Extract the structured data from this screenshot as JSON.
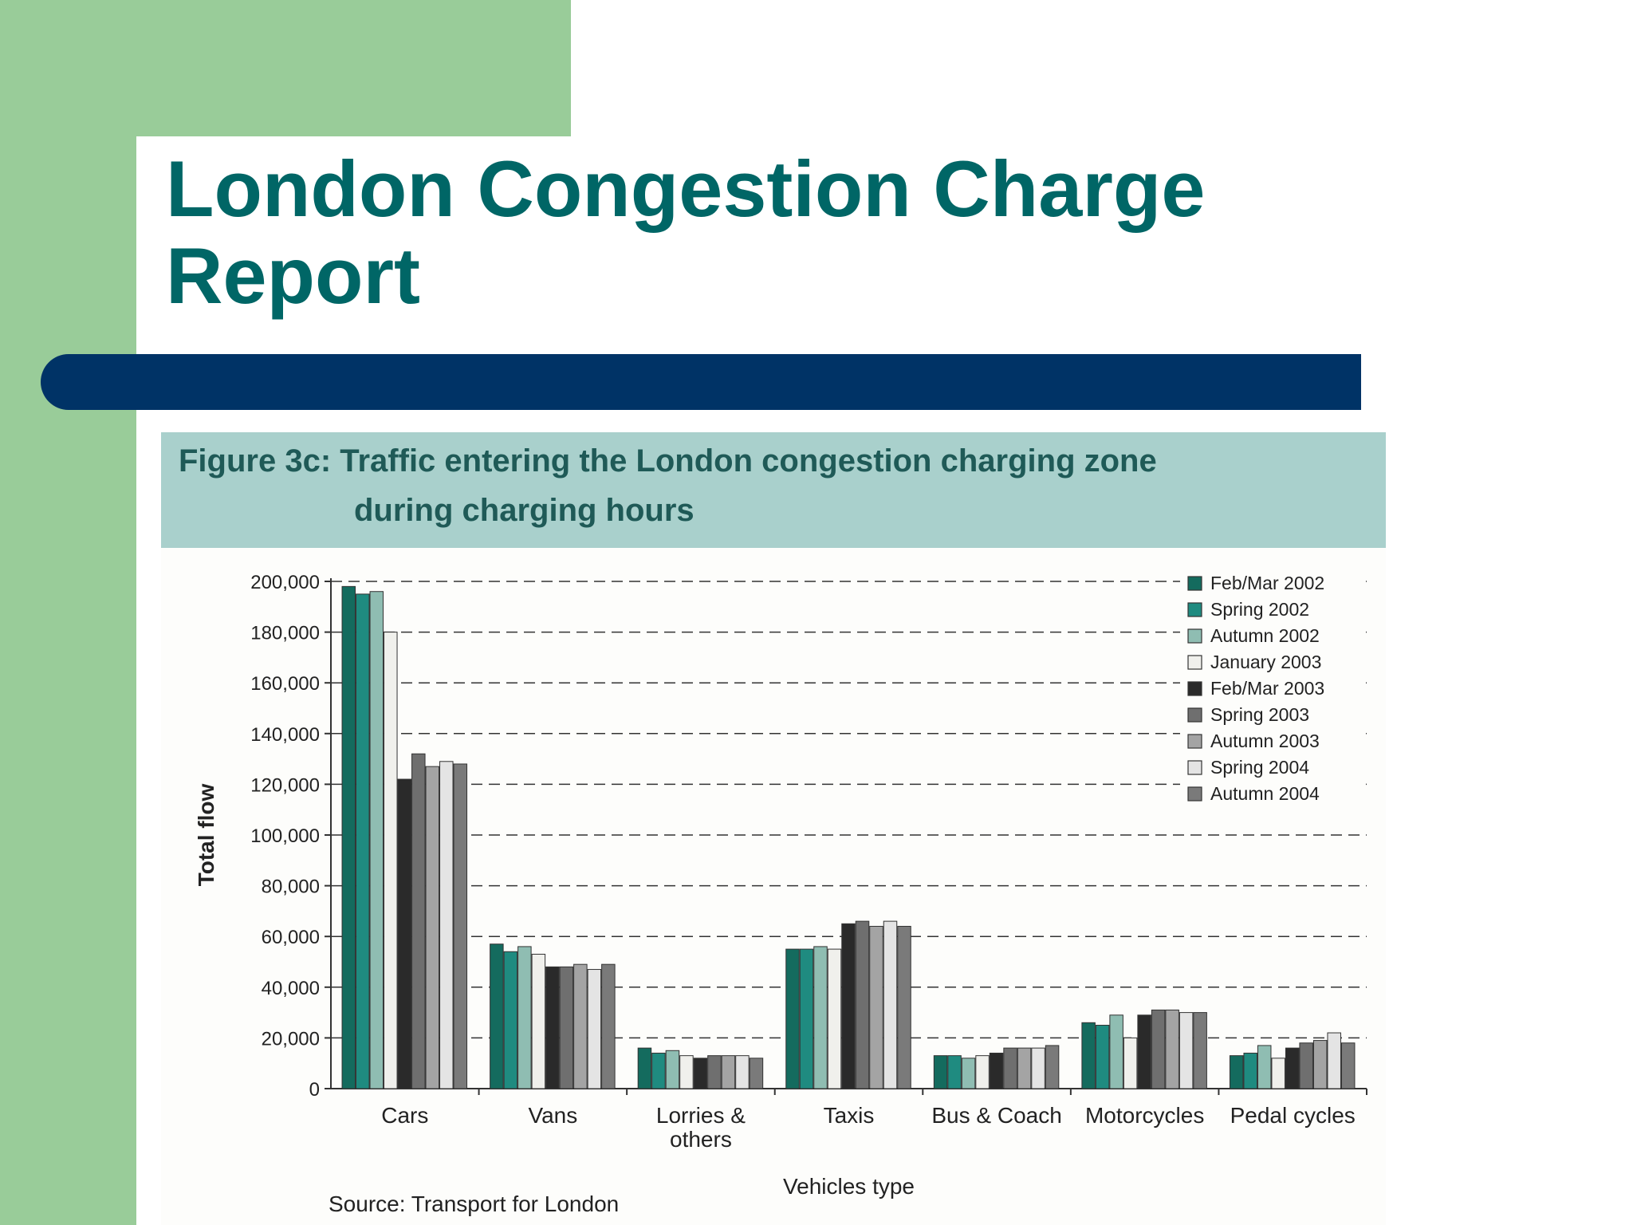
{
  "slide": {
    "title": "London Congestion Charge\nReport",
    "colors": {
      "accent_green": "#99cc99",
      "title_teal": "#006666",
      "bar_navy": "#003366"
    }
  },
  "figure": {
    "title_line1": "Figure 3c: Traffic entering the London congestion charging zone",
    "title_line2": "during charging hours",
    "source": "Source: Transport for London"
  },
  "chart_data": {
    "type": "bar",
    "xlabel": "Vehicles type",
    "ylabel": "Total flow",
    "ylim": [
      0,
      200000
    ],
    "yticks": [
      0,
      20000,
      40000,
      60000,
      80000,
      100000,
      120000,
      140000,
      160000,
      180000,
      200000
    ],
    "ytick_labels": [
      "0",
      "20,000",
      "40,000",
      "60,000",
      "80,000",
      "100,000",
      "120,000",
      "140,000",
      "160,000",
      "180,000",
      "200,000"
    ],
    "grid": "horizontal dashed",
    "legend_position": "top-right",
    "categories": [
      "Cars",
      "Vans",
      "Lorries & others",
      "Taxis",
      "Bus & Coach",
      "Motorcycles",
      "Pedal cycles"
    ],
    "category_labels": [
      [
        "Cars"
      ],
      [
        "Vans"
      ],
      [
        "Lorries &",
        "others"
      ],
      [
        "Taxis"
      ],
      [
        "Bus & Coach"
      ],
      [
        "Motorcycles"
      ],
      [
        "Pedal cycles"
      ]
    ],
    "series": [
      {
        "name": "Feb/Mar 2002",
        "color": "#146b5e",
        "values": [
          198000,
          57000,
          16000,
          55000,
          13000,
          26000,
          13000
        ]
      },
      {
        "name": "Spring 2002",
        "color": "#1f8b80",
        "values": [
          195000,
          54000,
          14000,
          55000,
          13000,
          25000,
          14000
        ]
      },
      {
        "name": "Autumn 2002",
        "color": "#8fbdb2",
        "values": [
          196000,
          56000,
          15000,
          56000,
          12000,
          29000,
          17000
        ]
      },
      {
        "name": "January 2003",
        "color": "#f0f0ec",
        "values": [
          180000,
          53000,
          13000,
          55000,
          13000,
          20000,
          12000
        ]
      },
      {
        "name": "Feb/Mar 2003",
        "color": "#2a2a2a",
        "values": [
          122000,
          48000,
          12000,
          65000,
          14000,
          29000,
          16000
        ]
      },
      {
        "name": "Spring 2003",
        "color": "#6f6f6f",
        "values": [
          132000,
          48000,
          13000,
          66000,
          16000,
          31000,
          18000
        ]
      },
      {
        "name": "Autumn 2003",
        "color": "#a4a4a4",
        "values": [
          127000,
          49000,
          13000,
          64000,
          16000,
          31000,
          19000
        ]
      },
      {
        "name": "Spring 2004",
        "color": "#e4e4e4",
        "values": [
          129000,
          47000,
          13000,
          66000,
          16000,
          30000,
          22000
        ]
      },
      {
        "name": "Autumn 2004",
        "color": "#7a7a7a",
        "values": [
          128000,
          49000,
          12000,
          64000,
          17000,
          30000,
          18000
        ]
      }
    ]
  }
}
